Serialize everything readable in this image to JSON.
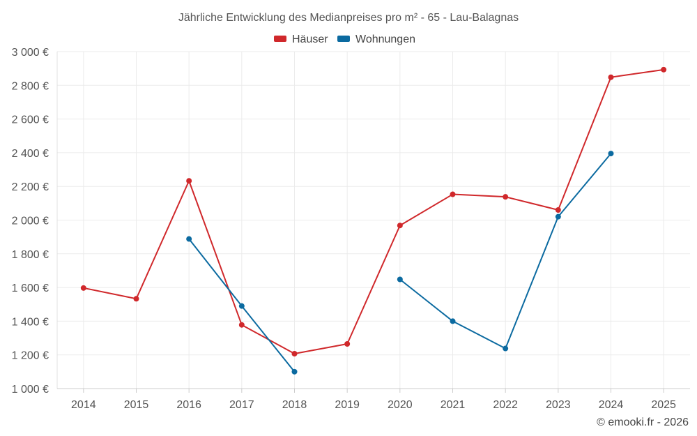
{
  "chart_data": {
    "type": "line",
    "title": "Jährliche Entwicklung des Medianpreises pro m² - 65 - Lau-Balagnas",
    "categories": [
      "2014",
      "2015",
      "2016",
      "2017",
      "2018",
      "2019",
      "2020",
      "2021",
      "2022",
      "2023",
      "2024",
      "2025"
    ],
    "ylim": [
      1000,
      3000
    ],
    "yticks": [
      1000,
      1200,
      1400,
      1600,
      1800,
      2000,
      2200,
      2400,
      2600,
      2800,
      3000
    ],
    "ytick_labels": [
      "1 000 €",
      "1 200 €",
      "1 400 €",
      "1 600 €",
      "1 800 €",
      "2 000 €",
      "2 200 €",
      "2 400 €",
      "2 600 €",
      "2 800 €",
      "3 000 €"
    ],
    "grid": true,
    "legend_position": "top-center",
    "series": [
      {
        "name": "Häuser",
        "color": "#d0282b",
        "values": [
          1597,
          1533,
          2233,
          1378,
          1207,
          1265,
          1968,
          2153,
          2138,
          2060,
          2848,
          2893
        ]
      },
      {
        "name": "Wohnungen",
        "color": "#0b6aa0",
        "values": [
          null,
          null,
          1888,
          1490,
          1100,
          null,
          1648,
          1400,
          1238,
          2020,
          2395,
          null
        ]
      }
    ]
  },
  "footer": "© emooki.fr - 2026"
}
